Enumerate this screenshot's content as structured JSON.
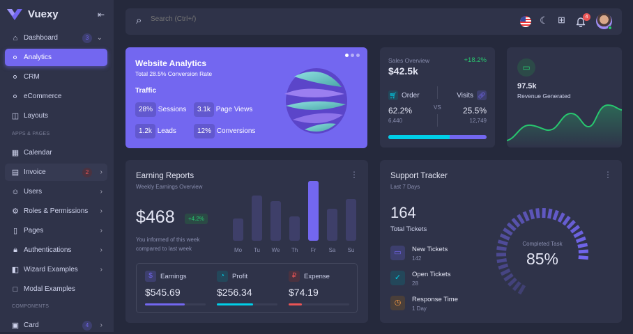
{
  "app": {
    "name": "Vuexy"
  },
  "sidebar": {
    "dashboard": {
      "label": "Dashboard",
      "badge": "3"
    },
    "sub": [
      {
        "label": "Analytics"
      },
      {
        "label": "CRM"
      },
      {
        "label": "eCommerce"
      }
    ],
    "layouts": "Layouts",
    "section_apps": "APPS & PAGES",
    "items": [
      {
        "label": "Calendar",
        "icon": "calendar-icon"
      },
      {
        "label": "Invoice",
        "icon": "invoice-icon",
        "badge": "2"
      },
      {
        "label": "Users",
        "icon": "users-icon"
      },
      {
        "label": "Roles & Permissions",
        "icon": "gear-icon"
      },
      {
        "label": "Pages",
        "icon": "file-icon"
      },
      {
        "label": "Authentications",
        "icon": "lock-icon"
      },
      {
        "label": "Wizard Examples",
        "icon": "wizard-icon"
      },
      {
        "label": "Modal Examples",
        "icon": "square-icon"
      }
    ],
    "section_components": "COMPONENTS",
    "card": {
      "label": "Card",
      "badge": "4"
    }
  },
  "header": {
    "search_placeholder": "Search (Ctrl+/)",
    "notifications": "4"
  },
  "website_analytics": {
    "title": "Website Analytics",
    "subtitle": "Total 28.5% Conversion Rate",
    "traffic": "Traffic",
    "stats": [
      {
        "value": "28%",
        "label": "Sessions"
      },
      {
        "value": "3.1k",
        "label": "Page Views"
      },
      {
        "value": "1.2k",
        "label": "Leads"
      },
      {
        "value": "12%",
        "label": "Conversions"
      }
    ]
  },
  "sales": {
    "label": "Sales Overview",
    "change": "+18.2%",
    "value": "$42.5k",
    "order": {
      "label": "Order",
      "pct": "62.2%",
      "count": "6,440"
    },
    "vs": "VS",
    "visits": {
      "label": "Visits",
      "pct": "25.5%",
      "count": "12,749"
    },
    "order_share": 62.2
  },
  "revenue": {
    "value": "97.5k",
    "label": "Revenue Generated"
  },
  "earning": {
    "title": "Earning Reports",
    "subtitle": "Weekly Earnings Overview",
    "value": "$468",
    "change": "+4.2%",
    "note1": "You informed of this week",
    "note2": "compared to last week",
    "days": [
      "Mo",
      "Tu",
      "We",
      "Th",
      "Fr",
      "Sa",
      "Su"
    ],
    "bars": [
      37,
      76,
      66,
      41,
      100,
      54,
      70
    ],
    "highlight": "Fr",
    "metrics": [
      {
        "label": "Earnings",
        "value": "$545.69",
        "progress": 65,
        "color": "#7367f0"
      },
      {
        "label": "Profit",
        "value": "$256.34",
        "progress": 60,
        "color": "#00cfe8"
      },
      {
        "label": "Expense",
        "value": "$74.19",
        "progress": 22,
        "color": "#ea5455"
      }
    ]
  },
  "support": {
    "title": "Support Tracker",
    "subtitle": "Last 7 Days",
    "total": "164",
    "total_label": "Total Tickets",
    "items": [
      {
        "label": "New Tickets",
        "value": "142",
        "color": "#7367f0"
      },
      {
        "label": "Open Tickets",
        "value": "28",
        "color": "#00cfe8"
      },
      {
        "label": "Response Time",
        "value": "1 Day",
        "color": "#ff9f43"
      }
    ],
    "gauge_label": "Completed Task",
    "gauge_value": "85%",
    "completed": 85
  }
}
